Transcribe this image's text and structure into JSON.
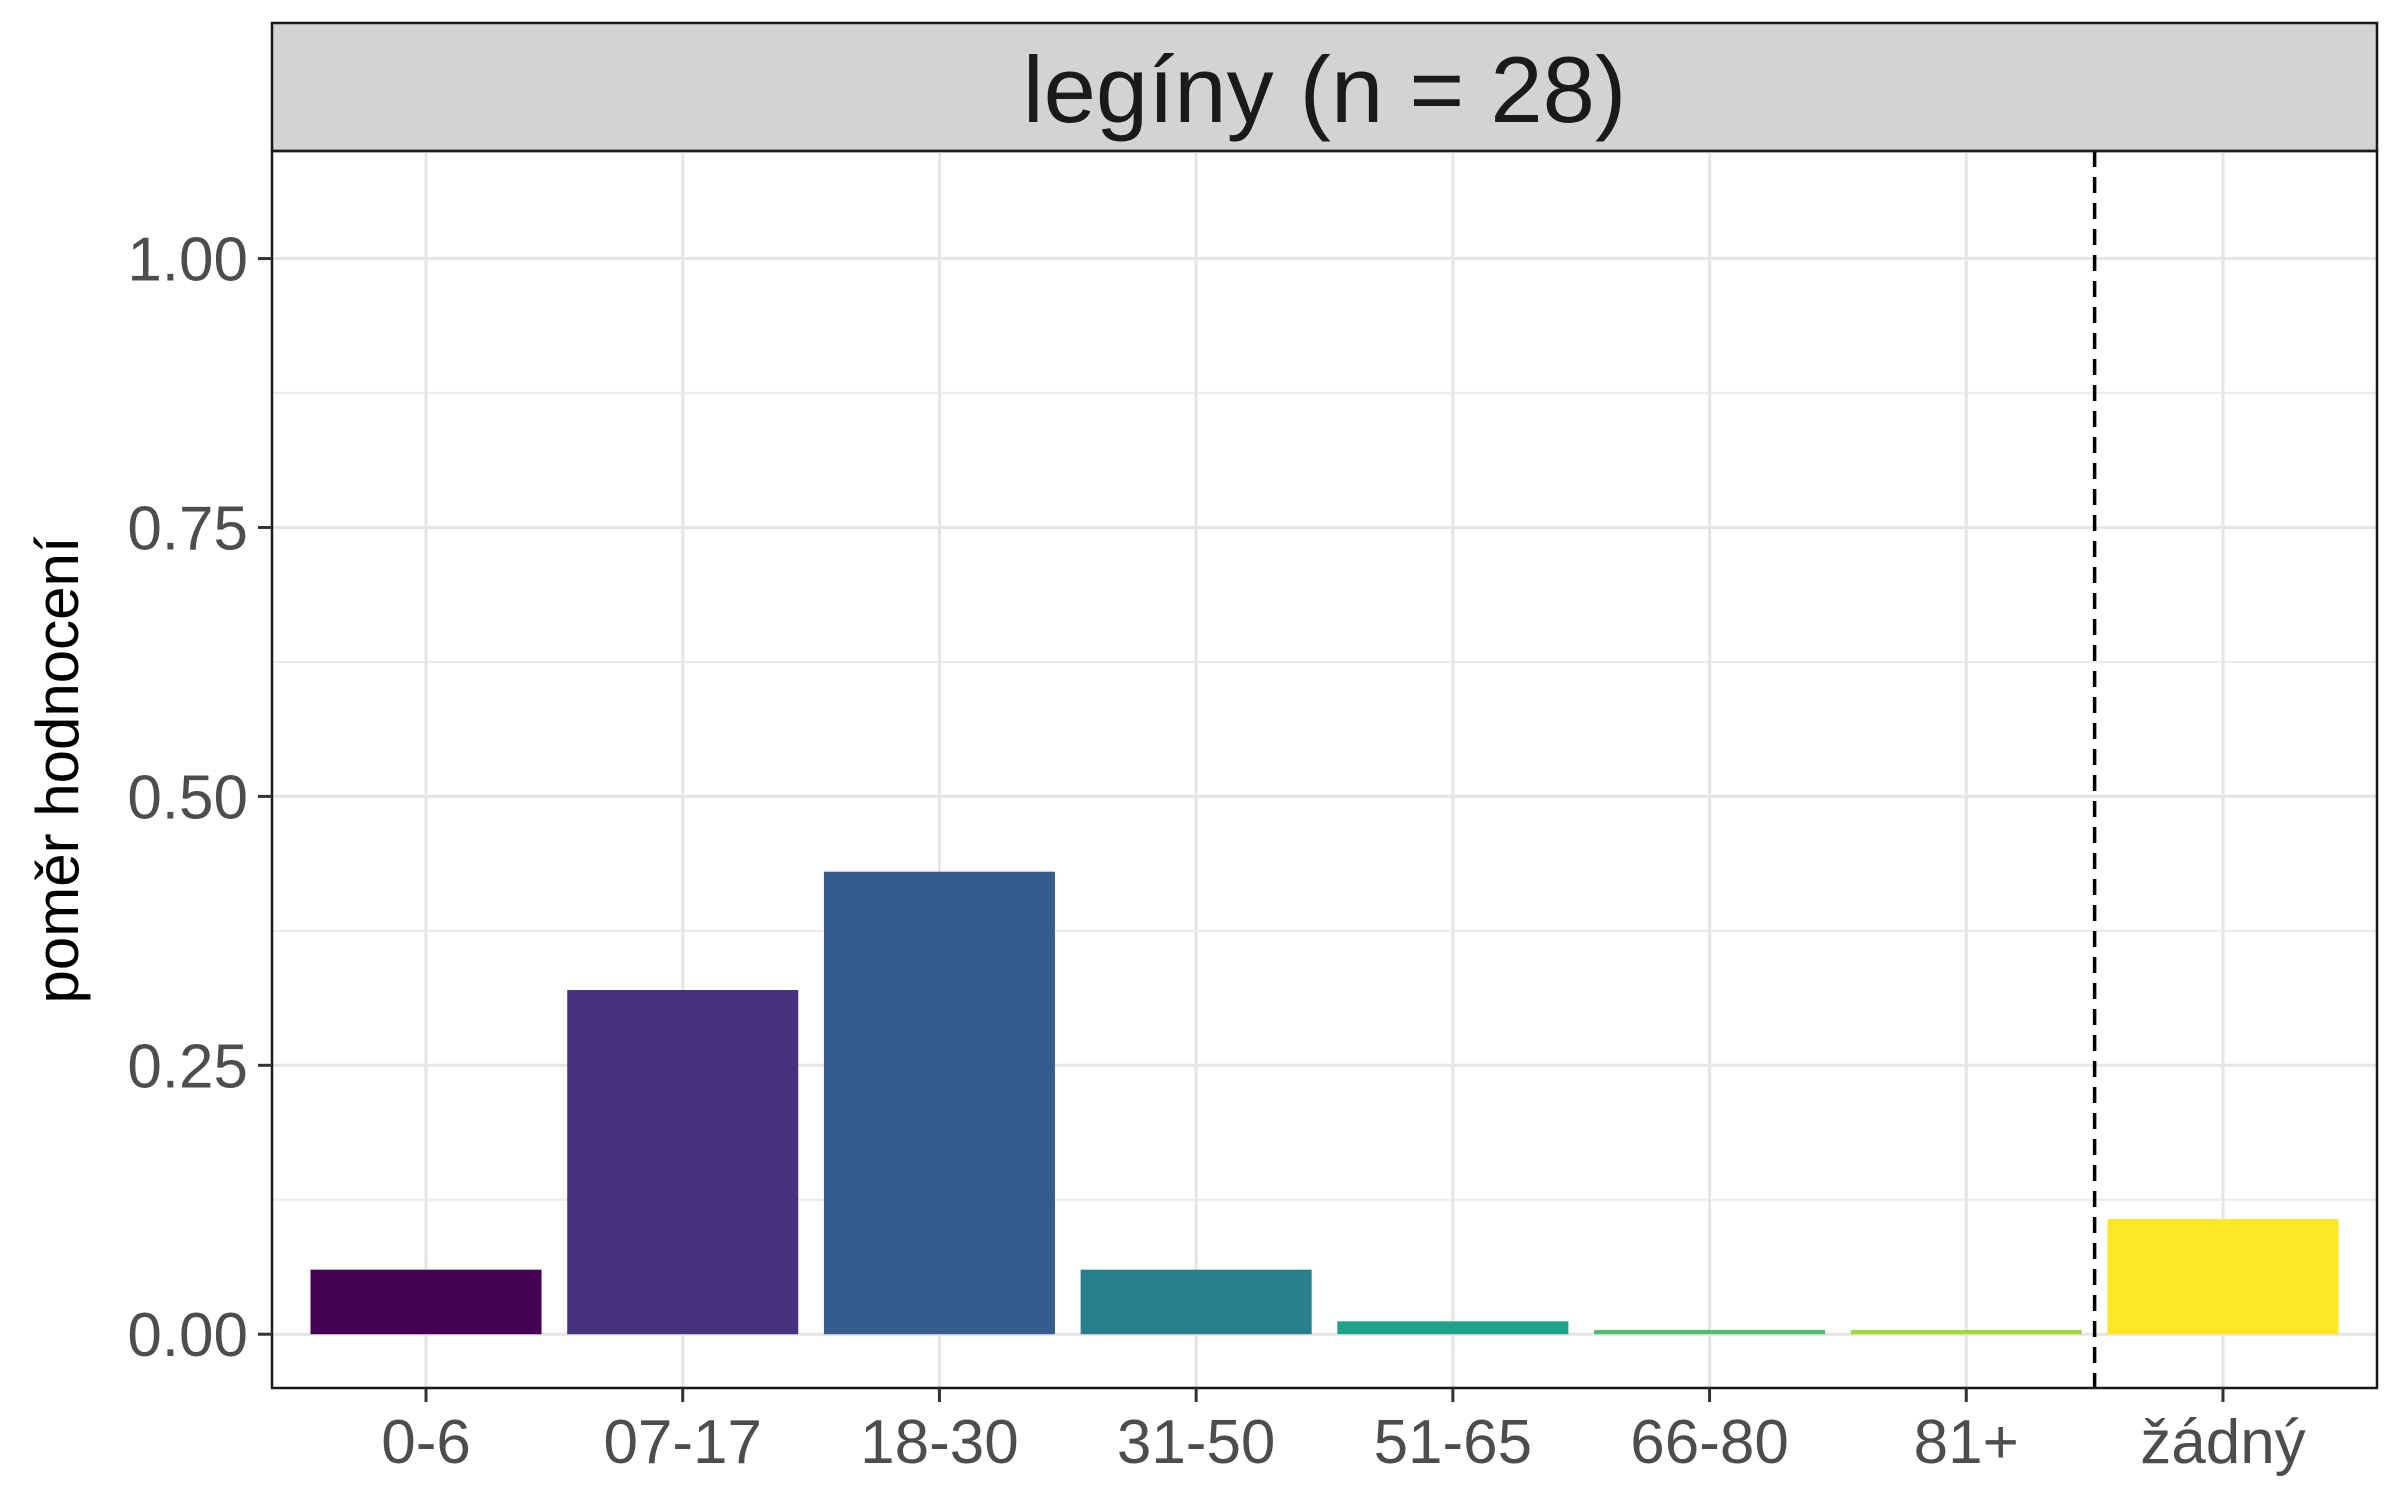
{
  "chart_data": {
    "type": "bar",
    "title": "legíny (n = 28)",
    "xlabel": "",
    "ylabel": "poměr hodnocení",
    "categories": [
      "0-6",
      "07-17",
      "18-30",
      "31-50",
      "51-65",
      "66-80",
      "81+",
      "žádný"
    ],
    "values": [
      0.06,
      0.32,
      0.43,
      0.06,
      0.012,
      0.004,
      0.004,
      0.107
    ],
    "colors": [
      "#440154",
      "#46327e",
      "#365c8d",
      "#277f8e",
      "#1fa187",
      "#4ac16d",
      "#a0da39",
      "#fde725"
    ],
    "ylim": [
      -0.05,
      1.1
    ],
    "yticks": [
      0.0,
      0.25,
      0.5,
      0.75,
      1.0
    ],
    "ytick_labels": [
      "0.00",
      "0.25",
      "0.50",
      "0.75",
      "1.00"
    ],
    "reference_line": {
      "style": "dashed",
      "between": [
        "81+",
        "žádný"
      ]
    },
    "grid": true,
    "legend": "none"
  }
}
